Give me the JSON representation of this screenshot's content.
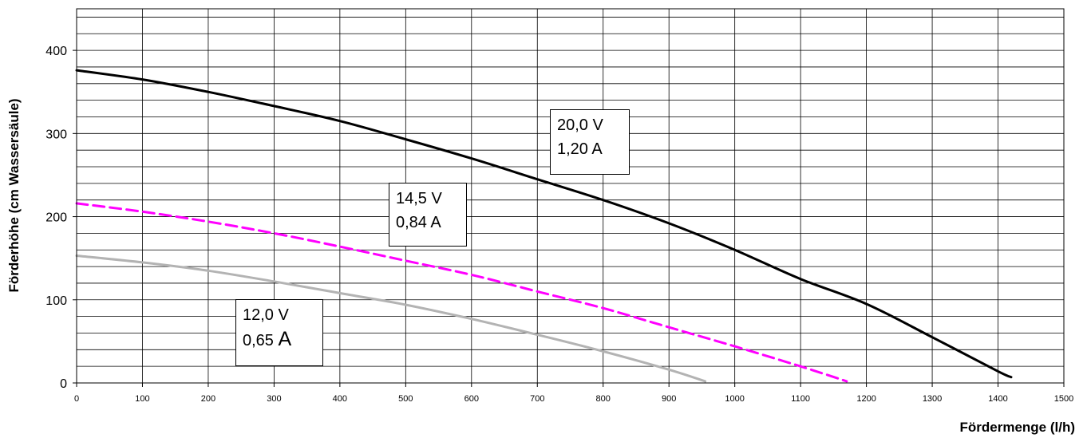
{
  "chart_data": {
    "type": "line",
    "title": "",
    "xlabel": "Fördermenge (l/h)",
    "ylabel": "Förderhöhe (cm Wassersäule)",
    "xlim": [
      0,
      1500
    ],
    "ylim": [
      0,
      450
    ],
    "x_ticks": [
      0,
      100,
      200,
      300,
      400,
      500,
      600,
      700,
      800,
      900,
      1000,
      1100,
      1200,
      1300,
      1400,
      1500
    ],
    "y_ticks": [
      0,
      100,
      200,
      300,
      400
    ],
    "grid": true,
    "series": [
      {
        "color": "#000000",
        "style": "solid",
        "x": [
          0,
          100,
          200,
          300,
          400,
          500,
          600,
          700,
          800,
          900,
          1000,
          1100,
          1200,
          1300,
          1400,
          1420
        ],
        "y": [
          376,
          365,
          350,
          333,
          315,
          293,
          270,
          245,
          220,
          192,
          160,
          125,
          95,
          55,
          14,
          7
        ]
      },
      {
        "color": "#ff00ff",
        "style": "dashed",
        "x": [
          0,
          100,
          200,
          300,
          400,
          500,
          600,
          700,
          800,
          900,
          1000,
          1100,
          1170
        ],
        "y": [
          216,
          206,
          194,
          180,
          164,
          147,
          130,
          110,
          90,
          67,
          44,
          20,
          2
        ]
      },
      {
        "color": "#b3b3b3",
        "style": "solid",
        "x": [
          0,
          100,
          200,
          300,
          400,
          500,
          600,
          700,
          800,
          900,
          955
        ],
        "y": [
          153,
          145,
          135,
          122,
          108,
          94,
          77,
          58,
          38,
          16,
          2
        ]
      }
    ],
    "annotations": [
      {
        "line1": "20,0 V",
        "line2": "1,20 A"
      },
      {
        "line1": "14,5 V",
        "line2": "0,84 A"
      },
      {
        "line1": "12,0 V",
        "line2_num": "0,65",
        "line2_unit": "A"
      }
    ]
  }
}
